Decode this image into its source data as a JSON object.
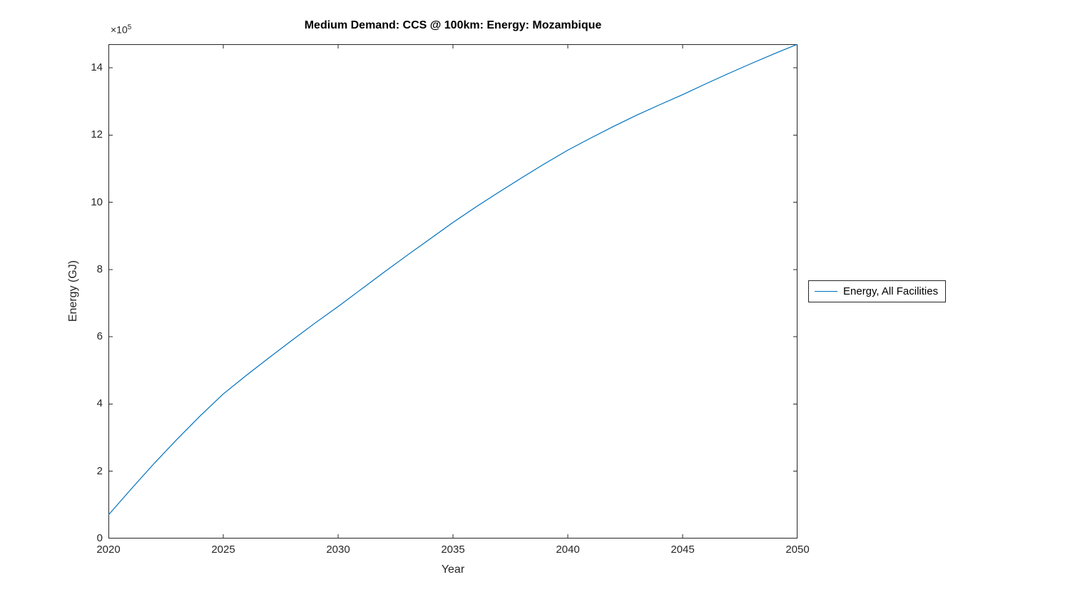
{
  "chart_data": {
    "type": "line",
    "title": "Medium Demand: CCS @ 100km: Energy: Mozambique",
    "xlabel": "Year",
    "ylabel": "Energy (GJ)",
    "y_exponent_base": "×10",
    "y_exponent": "5",
    "y_unit_multiplier": 100000,
    "xlim": [
      2020,
      2050
    ],
    "ylim": [
      0,
      14.7
    ],
    "x_ticks": [
      2020,
      2025,
      2030,
      2035,
      2040,
      2045,
      2050
    ],
    "y_ticks": [
      0,
      2,
      4,
      6,
      8,
      10,
      12,
      14
    ],
    "grid": false,
    "legend_position": "right-outside",
    "axis_color": "#262626",
    "background_color": "#ffffff",
    "series": [
      {
        "name": "Energy, All Facilities",
        "color": "#0072BD",
        "x": [
          2020,
          2021,
          2022,
          2023,
          2024,
          2025,
          2026,
          2027,
          2028,
          2029,
          2030,
          2031,
          2032,
          2033,
          2034,
          2035,
          2036,
          2037,
          2038,
          2039,
          2040,
          2041,
          2042,
          2043,
          2044,
          2045,
          2046,
          2047,
          2048,
          2049,
          2050
        ],
        "y": [
          0.7,
          1.48,
          2.24,
          2.96,
          3.65,
          4.3,
          4.85,
          5.38,
          5.9,
          6.41,
          6.9,
          7.41,
          7.92,
          8.42,
          8.91,
          9.4,
          9.86,
          10.3,
          10.73,
          11.15,
          11.55,
          11.91,
          12.26,
          12.59,
          12.9,
          13.2,
          13.52,
          13.83,
          14.13,
          14.42,
          14.7
        ]
      }
    ]
  }
}
